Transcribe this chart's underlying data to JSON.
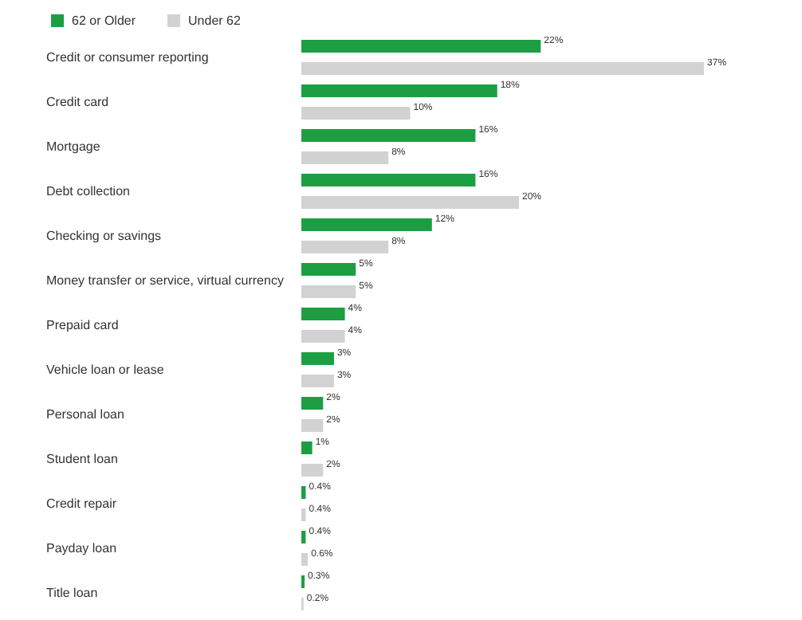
{
  "chart_data": {
    "type": "bar",
    "orientation": "horizontal",
    "legend": "top left",
    "categories": [
      "Credit or consumer reporting",
      "Credit card",
      "Mortgage",
      "Debt collection",
      "Checking or savings",
      "Money transfer or service, virtual currency",
      "Prepaid card",
      "Vehicle loan or lease",
      "Personal loan",
      "Student loan",
      "Credit repair",
      "Payday loan",
      "Title loan"
    ],
    "series": [
      {
        "name": "62 or Older",
        "color": "#1e9e43",
        "values": [
          22,
          18,
          16,
          16,
          12,
          5,
          4,
          3,
          2,
          1,
          0.4,
          0.4,
          0.3
        ],
        "value_labels": [
          "22%",
          "18%",
          "16%",
          "16%",
          "12%",
          "5%",
          "4%",
          "3%",
          "2%",
          "1%",
          "0.4%",
          "0.4%",
          "0.3%"
        ]
      },
      {
        "name": "Under 62",
        "color": "#d2d2d3",
        "values": [
          37,
          10,
          8,
          20,
          8,
          5,
          4,
          3,
          2,
          2,
          0.4,
          0.6,
          0.2
        ],
        "value_labels": [
          "37%",
          "10%",
          "8%",
          "20%",
          "8%",
          "5%",
          "4%",
          "3%",
          "2%",
          "2%",
          "0.4%",
          "0.6%",
          "0.2%"
        ]
      }
    ]
  }
}
